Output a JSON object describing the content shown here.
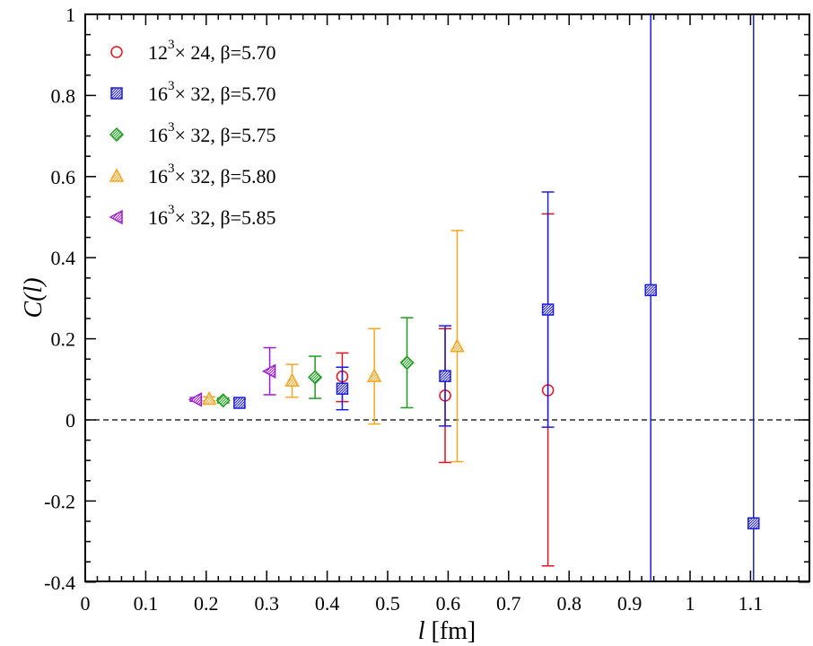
{
  "chart_data": {
    "type": "scatter",
    "title": "",
    "xlabel": {
      "symbol": "l",
      "unit": "[fm]"
    },
    "ylabel": {
      "prefix": "C(",
      "symbol": "l",
      "suffix": ")"
    },
    "xlim": [
      0,
      1.19
    ],
    "ylim": [
      -0.4,
      1.0
    ],
    "x_ticks": [
      0,
      0.1,
      0.2,
      0.3,
      0.4,
      0.5,
      0.6,
      0.7,
      0.8,
      0.9,
      1.0,
      1.1
    ],
    "x_tick_labels": [
      "0",
      "0.1",
      "0.2",
      "0.3",
      "0.4",
      "0.5",
      "0.6",
      "0.7",
      "0.8",
      "0.9",
      "1",
      "1.1"
    ],
    "y_ticks": [
      -0.4,
      -0.2,
      0,
      0.2,
      0.4,
      0.6,
      0.8,
      1.0
    ],
    "y_tick_labels": [
      "-0.4",
      "-0.2",
      "0",
      "0.2",
      "0.4",
      "0.6",
      "0.8",
      "1"
    ],
    "x_minor_step": 0.02,
    "y_minor_step": 0.05,
    "reference_line_y": 0,
    "legend_position": "top-left",
    "series": [
      {
        "name": "12³× 24, β=5.70",
        "label": {
          "base": "12",
          "exp": "3",
          "rest": "× 24, β=5.70"
        },
        "color": "#e0141e",
        "marker": "circle",
        "points": [
          {
            "x": 0.425,
            "y": 0.107,
            "lo": 0.045,
            "hi": 0.165
          },
          {
            "x": 0.595,
            "y": 0.06,
            "lo": -0.105,
            "hi": 0.225
          },
          {
            "x": 0.765,
            "y": 0.073,
            "lo": -0.36,
            "hi": 0.508
          }
        ]
      },
      {
        "name": "16³× 32, β=5.70",
        "label": {
          "base": "16",
          "exp": "3",
          "rest": "× 32, β=5.70"
        },
        "color": "#1d1ed8",
        "marker": "square",
        "points": [
          {
            "x": 0.255,
            "y": 0.042,
            "lo": 0.033,
            "hi": 0.051
          },
          {
            "x": 0.425,
            "y": 0.077,
            "lo": 0.025,
            "hi": 0.13
          },
          {
            "x": 0.595,
            "y": 0.108,
            "lo": -0.015,
            "hi": 0.232
          },
          {
            "x": 0.765,
            "y": 0.272,
            "lo": -0.018,
            "hi": 0.562
          },
          {
            "x": 0.935,
            "y": 0.32,
            "lo": -0.45,
            "hi": 1.05
          },
          {
            "x": 1.105,
            "y": -0.255,
            "lo": -0.45,
            "hi": 1.05
          }
        ]
      },
      {
        "name": "16³× 32, β=5.75",
        "label": {
          "base": "16",
          "exp": "3",
          "rest": "× 32, β=5.75"
        },
        "color": "#1f9a1f",
        "marker": "diamond",
        "points": [
          {
            "x": 0.228,
            "y": 0.048,
            "lo": 0.042,
            "hi": 0.054
          },
          {
            "x": 0.38,
            "y": 0.105,
            "lo": 0.053,
            "hi": 0.157
          },
          {
            "x": 0.532,
            "y": 0.141,
            "lo": 0.03,
            "hi": 0.252
          }
        ]
      },
      {
        "name": "16³× 32, β=5.80",
        "label": {
          "base": "16",
          "exp": "3",
          "rest": "× 32, β=5.80"
        },
        "color": "#f5a623",
        "marker": "triangle-up",
        "points": [
          {
            "x": 0.205,
            "y": 0.052,
            "lo": 0.047,
            "hi": 0.057
          },
          {
            "x": 0.342,
            "y": 0.097,
            "lo": 0.056,
            "hi": 0.137
          },
          {
            "x": 0.478,
            "y": 0.108,
            "lo": -0.01,
            "hi": 0.225
          },
          {
            "x": 0.615,
            "y": 0.182,
            "lo": -0.103,
            "hi": 0.467
          }
        ]
      },
      {
        "name": "16³× 32, β=5.85",
        "label": {
          "base": "16",
          "exp": "3",
          "rest": "× 32, β=5.85"
        },
        "color": "#9a1ed0",
        "marker": "triangle-left",
        "points": [
          {
            "x": 0.183,
            "y": 0.05,
            "lo": 0.046,
            "hi": 0.055
          },
          {
            "x": 0.305,
            "y": 0.12,
            "lo": 0.062,
            "hi": 0.178
          }
        ]
      }
    ]
  }
}
